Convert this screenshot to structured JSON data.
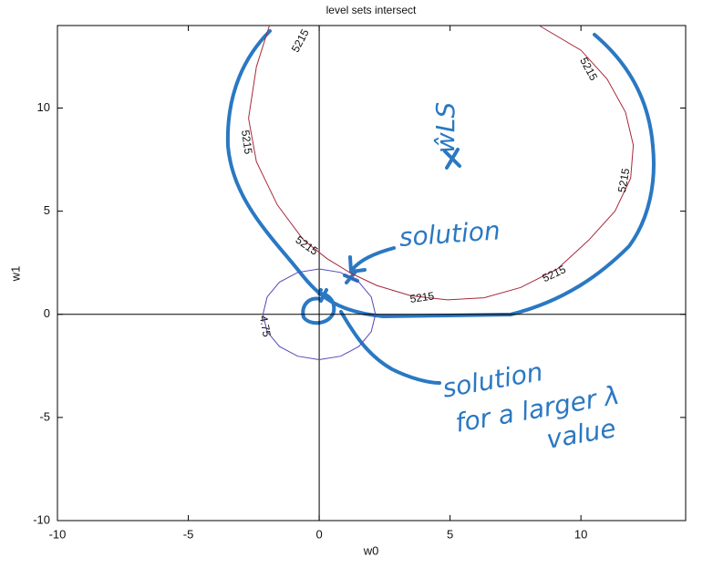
{
  "chart_data": {
    "type": "contour",
    "title": "level sets intersect",
    "x_label": "w0",
    "y_label": "w1",
    "xlim": [
      -10,
      14
    ],
    "ylim": [
      -10,
      14
    ],
    "xticks": [
      -10,
      -5,
      0,
      5,
      10
    ],
    "yticks": [
      -10,
      -5,
      0,
      5,
      10
    ],
    "contours": [
      {
        "label": "5215",
        "color": "#a8283a",
        "x": [
          -1.9,
          -2.4,
          -2.7,
          -2.4,
          -1.6,
          -0.6,
          0.3,
          1.2,
          2.2,
          3.5,
          4.9,
          6.3,
          7.7,
          9.1,
          10.3,
          11.3,
          11.9,
          12.0,
          11.7,
          11.0,
          10.0,
          8.4
        ],
        "y": [
          14,
          12,
          9.5,
          7.4,
          5.3,
          3.6,
          2.7,
          2.0,
          1.4,
          0.9,
          0.7,
          0.8,
          1.3,
          2.2,
          3.6,
          5.0,
          6.6,
          8.2,
          9.8,
          11.4,
          12.8,
          14
        ]
      },
      {
        "label": "4.75",
        "color": "#5048b8",
        "x": [
          2.15,
          1.99,
          1.52,
          0.82,
          0,
          -0.82,
          -1.52,
          -1.99,
          -2.15,
          -1.99,
          -1.52,
          -0.82,
          0,
          0.82,
          1.52,
          1.99,
          2.15
        ],
        "y": [
          0,
          0.84,
          1.56,
          2.03,
          2.2,
          2.03,
          1.56,
          0.84,
          0,
          -0.84,
          -1.56,
          -2.03,
          -2.2,
          -2.03,
          -1.56,
          -0.84,
          0
        ]
      }
    ],
    "annotations": [
      "solution",
      "solution",
      "for a larger λ",
      "value",
      "ŵLS"
    ]
  }
}
